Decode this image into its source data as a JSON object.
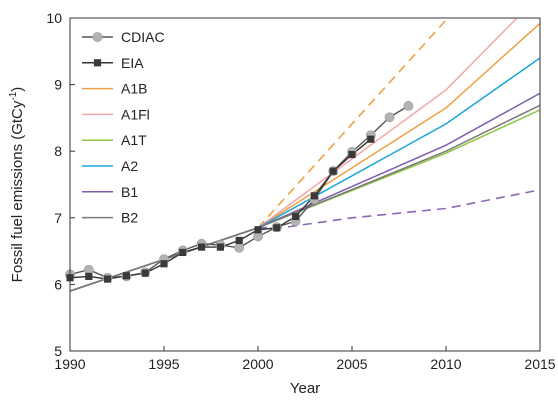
{
  "chart_data": {
    "type": "line",
    "xlabel": "Year",
    "ylabel": "Fossil fuel emissions (GtCy",
    "ylabel_sup": "-1",
    "ylabel_close": ")",
    "xlim": [
      1990,
      2015
    ],
    "ylim": [
      5,
      10
    ],
    "xticks": [
      1990,
      1995,
      2000,
      2005,
      2010,
      2015
    ],
    "yticks": [
      5,
      6,
      7,
      8,
      9,
      10
    ],
    "grid": false,
    "legend_position": "top-left",
    "series": [
      {
        "name": "CDIAC",
        "kind": "observed",
        "marker": "circle",
        "color": "#555555",
        "marker_color": "#b3b3b3",
        "x": [
          1990,
          1991,
          1992,
          1993,
          1994,
          1995,
          1996,
          1997,
          1998,
          1999,
          2000,
          2001,
          2002,
          2003,
          2004,
          2005,
          2006,
          2007,
          2008
        ],
        "y": [
          6.15,
          6.22,
          6.1,
          6.12,
          6.18,
          6.38,
          6.51,
          6.61,
          6.59,
          6.55,
          6.72,
          6.86,
          6.95,
          7.28,
          7.7,
          7.99,
          8.24,
          8.51,
          8.68
        ]
      },
      {
        "name": "EIA",
        "kind": "observed",
        "marker": "square",
        "color": "#333333",
        "marker_color": "#3a3a3a",
        "x": [
          1990,
          1991,
          1992,
          1993,
          1994,
          1995,
          1996,
          1997,
          1998,
          1999,
          2000,
          2001,
          2002,
          2003,
          2004,
          2005,
          2006
        ],
        "y": [
          6.1,
          6.12,
          6.08,
          6.13,
          6.17,
          6.31,
          6.48,
          6.56,
          6.56,
          6.66,
          6.82,
          6.85,
          7.02,
          7.33,
          7.7,
          7.95,
          8.18
        ]
      },
      {
        "name": "A1B",
        "color": "#f0a043",
        "x": [
          1990,
          2000,
          2010,
          2015
        ],
        "y": [
          5.9,
          6.85,
          8.65,
          9.92
        ]
      },
      {
        "name": "A1Fl",
        "color": "#f3a7a7",
        "x": [
          1990,
          2000,
          2010,
          2015
        ],
        "y": [
          5.9,
          6.85,
          8.92,
          10.35
        ]
      },
      {
        "name": "A1T",
        "color": "#8dc63f",
        "x": [
          1990,
          2000,
          2010,
          2015
        ],
        "y": [
          5.9,
          6.85,
          7.97,
          8.62
        ]
      },
      {
        "name": "A2",
        "color": "#1ba5dc",
        "x": [
          1990,
          2000,
          2010,
          2015
        ],
        "y": [
          5.9,
          6.85,
          8.41,
          9.4
        ]
      },
      {
        "name": "B1",
        "color": "#7d5cad",
        "x": [
          1990,
          2000,
          2010,
          2015
        ],
        "y": [
          5.9,
          6.85,
          8.09,
          8.87
        ]
      },
      {
        "name": "B2",
        "color": "#7a7a7a",
        "x": [
          1990,
          2000,
          2010,
          2015
        ],
        "y": [
          5.9,
          6.85,
          8.0,
          8.69
        ]
      }
    ],
    "dashed_lines": [
      {
        "color": "#f0a043",
        "x": [
          2000,
          2010.1
        ],
        "y": [
          6.85,
          10.0
        ]
      },
      {
        "color": "#8b68b5",
        "x": [
          2000,
          2001.5,
          2005,
          2010,
          2015
        ],
        "y": [
          6.85,
          6.86,
          7.0,
          7.14,
          7.42
        ]
      }
    ]
  }
}
